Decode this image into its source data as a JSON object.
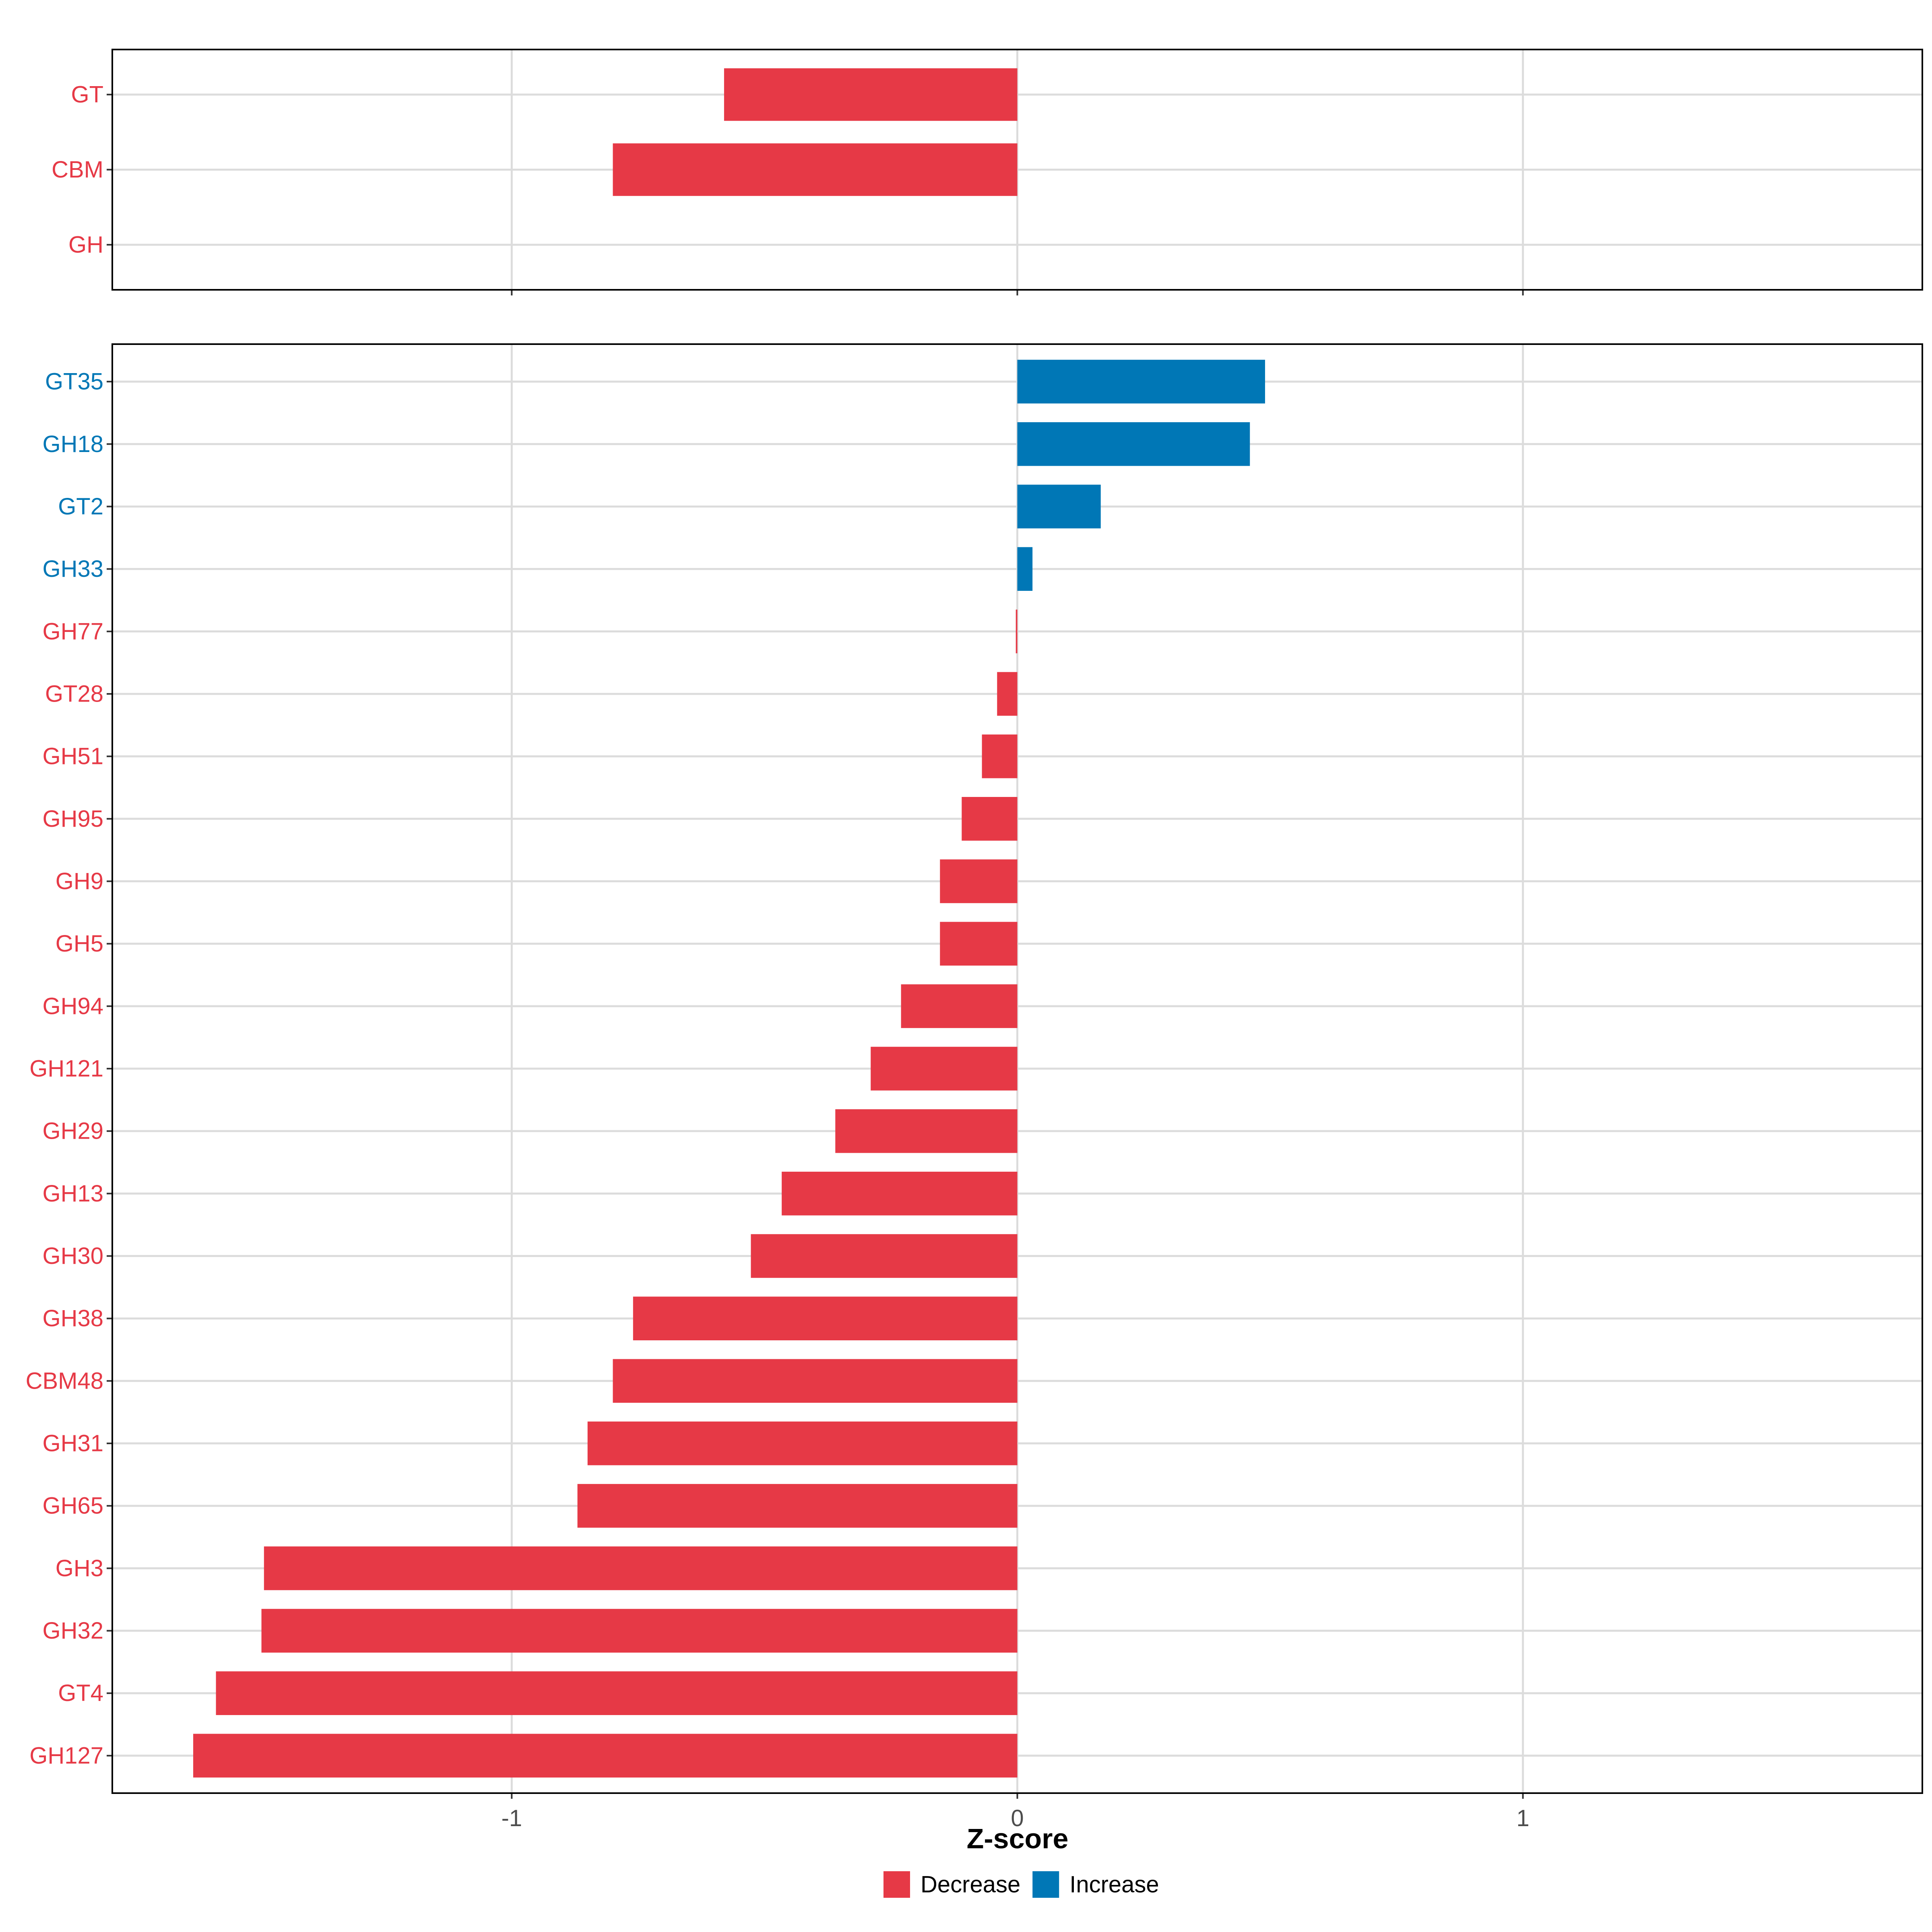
{
  "chart_data": {
    "type": "bar",
    "orientation": "horizontal",
    "xlabel": "Z-score",
    "xlim": [
      -1.79,
      1.79
    ],
    "x_ticks": [
      -1,
      0,
      1
    ],
    "x_tick_labels": [
      "-1",
      "0",
      "1"
    ],
    "grid": true,
    "legend_position": "bottom",
    "colors": {
      "Decrease": "#e63946",
      "Increase": "#0077b6"
    },
    "legend": [
      {
        "name": "Decrease",
        "color": "#e63946"
      },
      {
        "name": "Increase",
        "color": "#0077b6"
      }
    ],
    "panels": [
      {
        "name": "class-level",
        "categories": [
          "GT",
          "CBM",
          "GH"
        ],
        "values": [
          -0.58,
          -0.8,
          0.0
        ],
        "direction": [
          "Decrease",
          "Decrease",
          "Decrease"
        ]
      },
      {
        "name": "family-level",
        "categories": [
          "GT35",
          "GH18",
          "GT2",
          "GH33",
          "GH77",
          "GT28",
          "GH51",
          "GH95",
          "GH9",
          "GH5",
          "GH94",
          "GH121",
          "GH29",
          "GH13",
          "GH30",
          "GH38",
          "CBM48",
          "GH31",
          "GH65",
          "GH3",
          "GH32",
          "GT4",
          "GH127"
        ],
        "values": [
          0.49,
          0.46,
          0.165,
          0.03,
          -0.003,
          -0.04,
          -0.07,
          -0.11,
          -0.153,
          -0.153,
          -0.23,
          -0.29,
          -0.36,
          -0.466,
          -0.527,
          -0.76,
          -0.8,
          -0.85,
          -0.87,
          -1.49,
          -1.495,
          -1.585,
          -1.63
        ],
        "direction": [
          "Increase",
          "Increase",
          "Increase",
          "Increase",
          "Decrease",
          "Decrease",
          "Decrease",
          "Decrease",
          "Decrease",
          "Decrease",
          "Decrease",
          "Decrease",
          "Decrease",
          "Decrease",
          "Decrease",
          "Decrease",
          "Decrease",
          "Decrease",
          "Decrease",
          "Decrease",
          "Decrease",
          "Decrease",
          "Decrease"
        ]
      }
    ]
  }
}
